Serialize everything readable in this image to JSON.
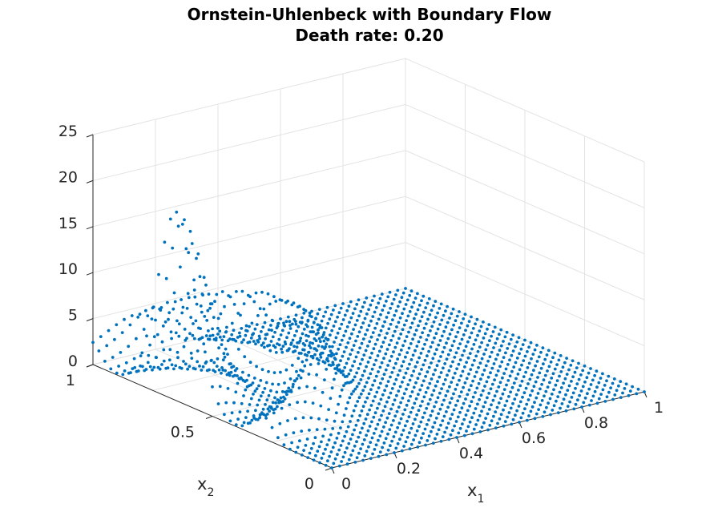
{
  "chart_data": {
    "type": "scatter",
    "title": "Ornstein-Uhlenbeck with Boundary Flow",
    "subtitle": "Death rate: 0.20",
    "xlabel": "x",
    "xlabel_sub": "1",
    "ylabel": "x",
    "ylabel_sub": "2",
    "zlabel": "",
    "xlim": [
      0,
      1
    ],
    "ylim": [
      0,
      1
    ],
    "zlim": [
      0,
      25
    ],
    "x_ticks": [
      "0",
      "0.2",
      "0.4",
      "0.6",
      "0.8",
      "1"
    ],
    "y_ticks": [
      "0",
      "0.5",
      "1"
    ],
    "z_ticks": [
      "0",
      "5",
      "10",
      "15",
      "20",
      "25"
    ],
    "grid": true,
    "marker_color": "#0072BD",
    "grid_resolution": 40,
    "surface": {
      "description_of_values": "values grid points on [0,1]x[0,1]; zero over most of the domain",
      "peak": {
        "x1": 0.0,
        "x2": 0.65,
        "z": 20.5
      },
      "ridge_level": 8
    }
  }
}
